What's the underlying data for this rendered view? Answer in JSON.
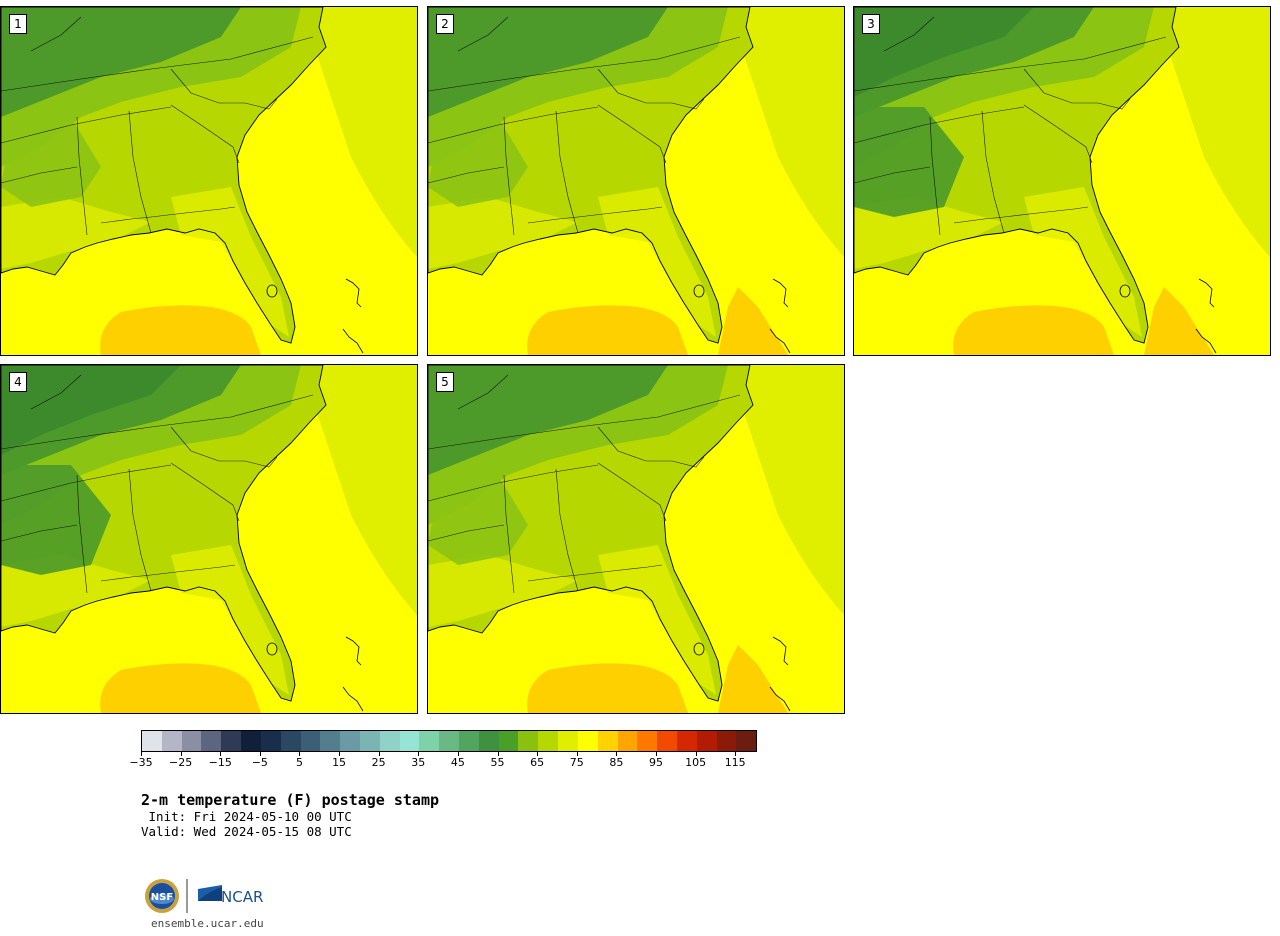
{
  "panels": [
    {
      "label": "1",
      "warm_gulf": true,
      "warm_atlantic": false,
      "cool_north": false
    },
    {
      "label": "2",
      "warm_gulf": true,
      "warm_atlantic": true,
      "cool_north": false
    },
    {
      "label": "3",
      "warm_gulf": true,
      "warm_atlantic": true,
      "cool_north": true
    },
    {
      "label": "4",
      "warm_gulf": true,
      "warm_atlantic": false,
      "cool_north": true
    },
    {
      "label": "5",
      "warm_gulf": true,
      "warm_atlantic": true,
      "cool_north": false
    }
  ],
  "colorbar": {
    "colors": [
      "#dfe3ea",
      "#b2b6c6",
      "#8a8fa3",
      "#5c6680",
      "#2e3a56",
      "#10203a",
      "#182e4c",
      "#2a4862",
      "#3c5e76",
      "#537e8e",
      "#6a9aa4",
      "#7ab5b4",
      "#8fd2c6",
      "#96e4d4",
      "#7fd1a8",
      "#6ab984",
      "#52a55e",
      "#3f9140",
      "#4a9f28",
      "#8ac10e",
      "#b4d800",
      "#e0ee00",
      "#ffff00",
      "#ffd200",
      "#ffa400",
      "#ff7800",
      "#f24a00",
      "#d42800",
      "#b31c04",
      "#8c1a08",
      "#6c1c10"
    ],
    "tick_labels": [
      "−35",
      "−25",
      "−15",
      "−5",
      "5",
      "15",
      "25",
      "35",
      "45",
      "55",
      "65",
      "75",
      "85",
      "95",
      "105",
      "115"
    ]
  },
  "legend_colors": {
    "cool": "#3d8a2c",
    "mid_green": "#4d9a2a",
    "light_green": "#8cc414",
    "yellow_green": "#b6d800",
    "lemon": "#e0ee00",
    "warm": "#ffff00",
    "hot": "#ffd000"
  },
  "title": "2-m temperature (F) postage stamp",
  "init": " Init: Fri 2024-05-10 00 UTC",
  "valid": "Valid: Wed 2024-05-15 08 UTC",
  "logos": {
    "left": "NSF",
    "right": "NCAR"
  },
  "site": "ensemble.ucar.edu"
}
